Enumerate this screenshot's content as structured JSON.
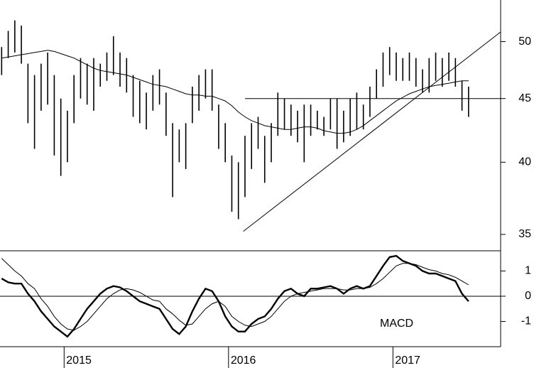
{
  "chart_data": [
    {
      "type": "ohlc",
      "log": true,
      "color": "#000000",
      "xlim": [
        2014.61,
        2017.655
      ],
      "ylim": [
        34,
        54
      ],
      "yticks": [
        35,
        40,
        45,
        50
      ],
      "x": [
        2014.62,
        2014.66,
        2014.7,
        2014.74,
        2014.78,
        2014.82,
        2014.86,
        2014.9,
        2014.94,
        2014.98,
        2015.02,
        2015.06,
        2015.1,
        2015.14,
        2015.18,
        2015.22,
        2015.26,
        2015.3,
        2015.34,
        2015.38,
        2015.42,
        2015.46,
        2015.5,
        2015.54,
        2015.58,
        2015.62,
        2015.66,
        2015.7,
        2015.74,
        2015.78,
        2015.82,
        2015.86,
        2015.9,
        2015.94,
        2015.98,
        2016.02,
        2016.06,
        2016.1,
        2016.14,
        2016.18,
        2016.22,
        2016.26,
        2016.3,
        2016.34,
        2016.38,
        2016.42,
        2016.46,
        2016.5,
        2016.54,
        2016.58,
        2016.62,
        2016.66,
        2016.7,
        2016.74,
        2016.78,
        2016.82,
        2016.86,
        2016.9,
        2016.94,
        2016.98,
        2017.02,
        2017.06,
        2017.1,
        2017.14,
        2017.18,
        2017.22,
        2017.26,
        2017.3,
        2017.34,
        2017.38,
        2017.42,
        2017.46
      ],
      "high": [
        49.5,
        51,
        52,
        51.5,
        48,
        47,
        48,
        49,
        47,
        45,
        44,
        47,
        48.5,
        48,
        48.5,
        48,
        49,
        50.5,
        49,
        48.5,
        47,
        46.5,
        45.5,
        47,
        47.5,
        45.5,
        43,
        42.5,
        43,
        46,
        47,
        47.5,
        47.5,
        44.5,
        43,
        40.5,
        40,
        42,
        43,
        43.5,
        42,
        43,
        45.5,
        45,
        44.5,
        44,
        44.5,
        44.5,
        44,
        43.5,
        45,
        45,
        44,
        45,
        45.5,
        44.5,
        46,
        47.5,
        49,
        49.5,
        49,
        48.5,
        49,
        48.5,
        47.5,
        48.5,
        49,
        48.5,
        49,
        48.5,
        46.5,
        46
      ],
      "low": [
        47,
        48.5,
        49,
        48,
        43,
        41,
        44,
        44.5,
        40.5,
        39,
        40,
        43,
        45,
        44.5,
        44,
        46,
        46.5,
        47,
        46,
        45.5,
        43.5,
        43,
        42.5,
        44,
        44.5,
        42,
        37.5,
        40,
        39.5,
        43,
        44,
        45,
        44,
        41,
        40,
        36.5,
        36,
        37.5,
        39.5,
        41,
        38.5,
        40,
        42,
        42.5,
        42,
        41.5,
        40,
        42,
        42.5,
        42,
        42.5,
        41,
        41.5,
        42,
        42.5,
        42.5,
        43.5,
        45,
        46,
        47,
        46.5,
        46.5,
        46.5,
        46,
        45.5,
        45.5,
        46.5,
        46,
        46.5,
        46,
        44,
        43.5
      ],
      "ma": {
        "color": "#000000",
        "values": [
          48.5,
          48.6,
          48.7,
          48.8,
          48.9,
          49,
          49.1,
          49.2,
          49.1,
          48.9,
          48.7,
          48.5,
          48.2,
          47.9,
          47.6,
          47.4,
          47.3,
          47.2,
          47.1,
          47,
          46.8,
          46.6,
          46.4,
          46.2,
          46.1,
          46,
          45.8,
          45.6,
          45.4,
          45.3,
          45.3,
          45.2,
          45.2,
          45,
          44.8,
          44.4,
          43.9,
          43.5,
          43.2,
          43,
          42.8,
          42.7,
          42.6,
          42.5,
          42.5,
          42.6,
          42.7,
          42.7,
          42.6,
          42.4,
          42.3,
          42.2,
          42.2,
          42.3,
          42.5,
          42.8,
          43.2,
          43.6,
          44,
          44.4,
          44.8,
          45.1,
          45.4,
          45.6,
          45.8,
          46,
          46.1,
          46.2,
          46.3,
          46.4,
          46.5,
          46.5
        ]
      },
      "lines": [
        {
          "x": [
            2016.09,
            2017.655
          ],
          "y": [
            35.2,
            50.9
          ]
        },
        {
          "x": [
            2016.1,
            2017.655
          ],
          "y": [
            45,
            45
          ]
        }
      ]
    },
    {
      "type": "line",
      "label": "MACD",
      "xlim": [
        2014.61,
        2017.655
      ],
      "xticks": [
        2015,
        2016,
        2017
      ],
      "ylim": [
        -2,
        1.8
      ],
      "yticks": [
        -1,
        0,
        1
      ],
      "zero_line": true,
      "x": [
        2014.62,
        2014.66,
        2014.7,
        2014.74,
        2014.78,
        2014.82,
        2014.86,
        2014.9,
        2014.94,
        2014.98,
        2015.02,
        2015.06,
        2015.1,
        2015.14,
        2015.18,
        2015.22,
        2015.26,
        2015.3,
        2015.34,
        2015.38,
        2015.42,
        2015.46,
        2015.5,
        2015.54,
        2015.58,
        2015.62,
        2015.66,
        2015.7,
        2015.74,
        2015.78,
        2015.82,
        2015.86,
        2015.9,
        2015.94,
        2015.98,
        2016.02,
        2016.06,
        2016.1,
        2016.14,
        2016.18,
        2016.22,
        2016.26,
        2016.3,
        2016.34,
        2016.38,
        2016.42,
        2016.46,
        2016.5,
        2016.54,
        2016.58,
        2016.62,
        2016.66,
        2016.7,
        2016.74,
        2016.78,
        2016.82,
        2016.86,
        2016.9,
        2016.94,
        2016.98,
        2017.02,
        2017.06,
        2017.1,
        2017.14,
        2017.18,
        2017.22,
        2017.26,
        2017.3,
        2017.34,
        2017.38,
        2017.42,
        2017.46
      ],
      "series": [
        {
          "color": "#000000",
          "values": [
            0.7,
            0.55,
            0.5,
            0.5,
            0.1,
            -0.2,
            -0.6,
            -0.9,
            -1.2,
            -1.4,
            -1.6,
            -1.3,
            -0.9,
            -0.5,
            -0.2,
            0.1,
            0.3,
            0.4,
            0.35,
            0.2,
            0,
            -0.2,
            -0.3,
            -0.4,
            -0.5,
            -0.9,
            -1.3,
            -1.5,
            -1.2,
            -0.6,
            -0.1,
            0.3,
            0.2,
            -0.2,
            -0.8,
            -1.2,
            -1.4,
            -1.4,
            -1.1,
            -0.9,
            -0.8,
            -0.5,
            -0.1,
            0.2,
            0.3,
            0.1,
            0,
            0.3,
            0.3,
            0.35,
            0.4,
            0.3,
            0.1,
            0.3,
            0.4,
            0.3,
            0.4,
            0.8,
            1.2,
            1.55,
            1.6,
            1.4,
            1.3,
            1.2,
            1,
            0.9,
            0.9,
            0.8,
            0.7,
            0.6,
            0.1,
            -0.2
          ]
        },
        {
          "color": "#000000",
          "values": [
            1.5,
            1.25,
            1,
            0.8,
            0.5,
            0.3,
            -0.1,
            -0.4,
            -0.8,
            -1.1,
            -1.3,
            -1.35,
            -1.2,
            -1,
            -0.7,
            -0.4,
            -0.1,
            0.1,
            0.25,
            0.3,
            0.25,
            0.15,
            0,
            -0.15,
            -0.2,
            -0.5,
            -0.7,
            -0.95,
            -1.15,
            -1.1,
            -0.8,
            -0.5,
            -0.3,
            -0.2,
            -0.4,
            -0.8,
            -1,
            -1.15,
            -1.2,
            -1.1,
            -1,
            -0.8,
            -0.5,
            -0.2,
            0,
            0.1,
            0.15,
            0.2,
            0.25,
            0.3,
            0.3,
            0.3,
            0.25,
            0.25,
            0.3,
            0.3,
            0.35,
            0.5,
            0.7,
            0.95,
            1.2,
            1.3,
            1.3,
            1.25,
            1.15,
            1.05,
            1,
            0.9,
            0.85,
            0.75,
            0.6,
            0.45
          ]
        }
      ]
    }
  ]
}
